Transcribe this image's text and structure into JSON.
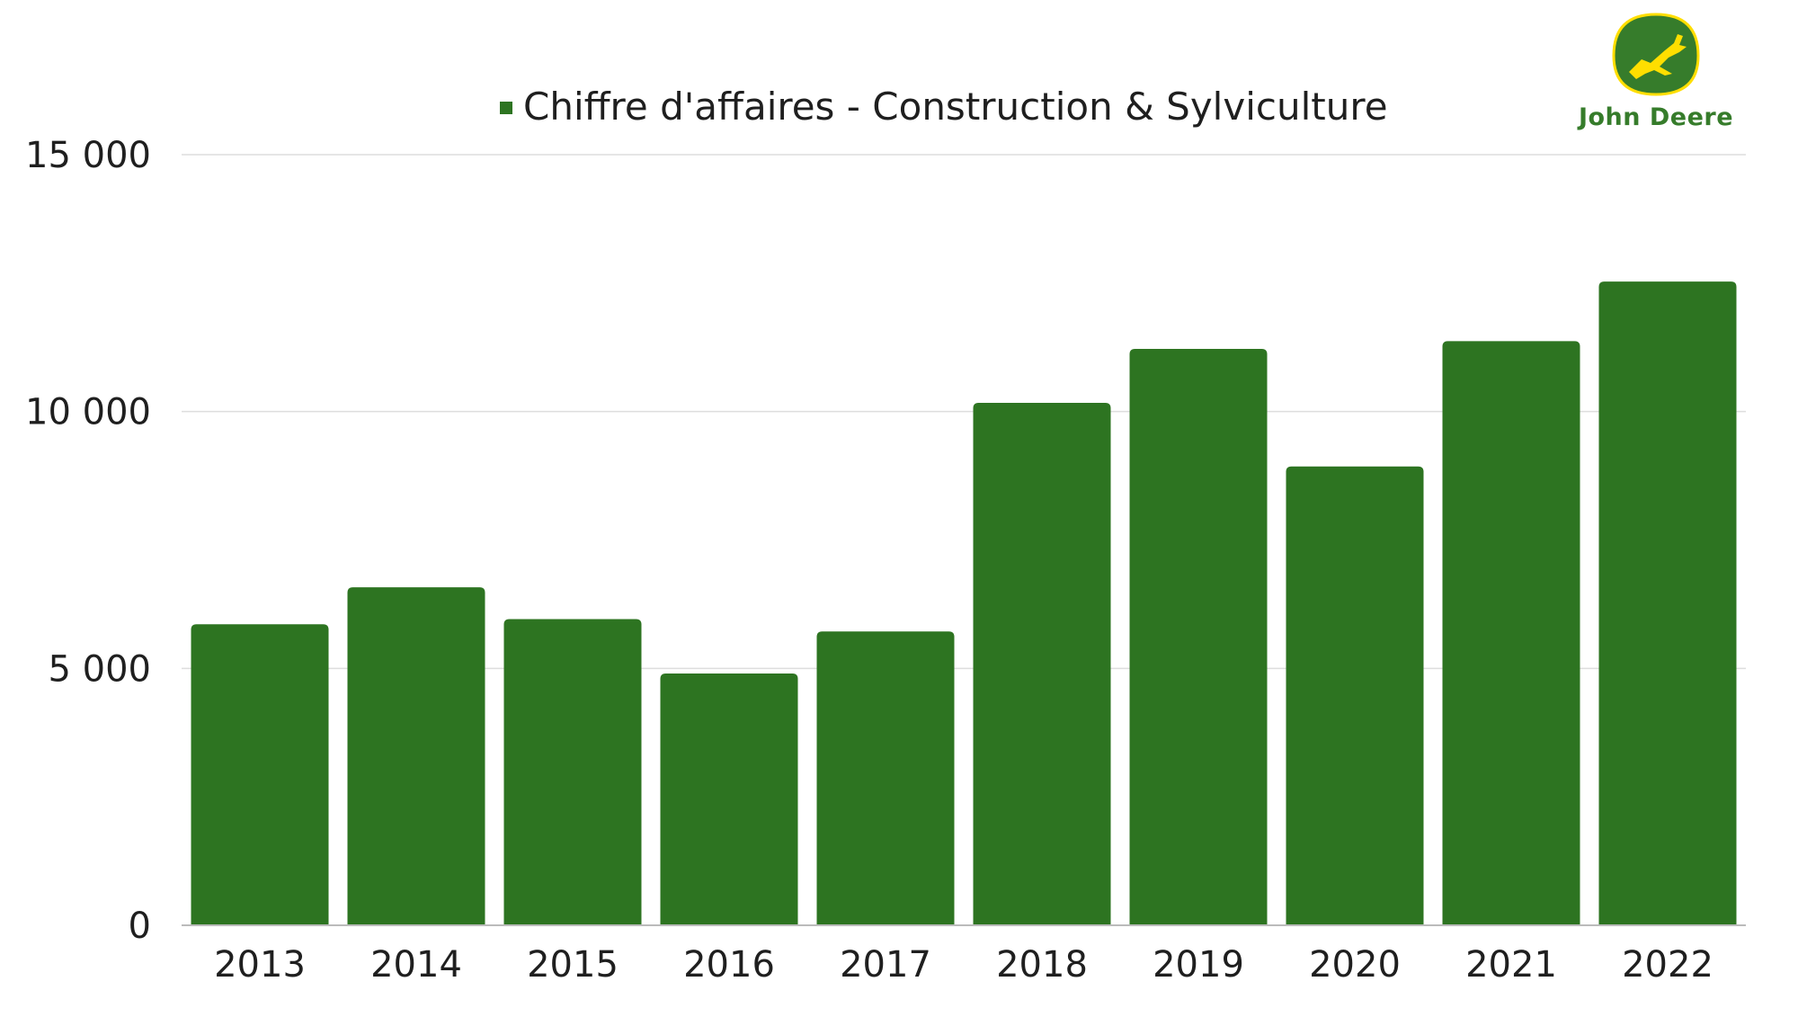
{
  "chart_data": {
    "type": "bar",
    "categories": [
      "2013",
      "2014",
      "2015",
      "2016",
      "2017",
      "2018",
      "2019",
      "2020",
      "2021",
      "2022"
    ],
    "series": [
      {
        "name": "Chiffre d'affaires - Construction & Sylviculture",
        "values": [
          5860,
          6580,
          5960,
          4900,
          5720,
          10170,
          11220,
          8930,
          11370,
          12530
        ],
        "color": "#2d7421"
      }
    ],
    "title": "",
    "xlabel": "",
    "ylabel": "",
    "ylim": [
      0,
      15000
    ],
    "yticks": [
      0,
      5000,
      10000,
      15000
    ],
    "ytick_labels": [
      "0",
      "5 000",
      "10 000",
      "15 000"
    ],
    "grid": true,
    "legend_position": "top-center"
  },
  "logo": {
    "text": "John Deere",
    "brand_color": "#367c2b",
    "accent_color": "#ffde00",
    "icon": "leaping-deer-icon"
  },
  "colors": {
    "grid": "#dedede",
    "axis": "#bbbbbb",
    "text": "#1f1f1f"
  }
}
